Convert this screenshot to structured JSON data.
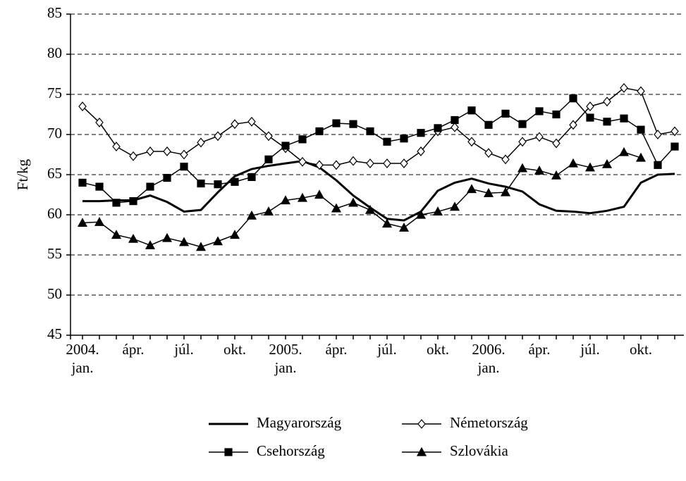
{
  "chart_data": {
    "type": "line",
    "ylabel": "Ft/kg",
    "categories": [
      [
        "2004.",
        "jan."
      ],
      null,
      null,
      "ápr.",
      null,
      null,
      "júl.",
      null,
      null,
      "okt.",
      null,
      null,
      [
        "2005.",
        "jan."
      ],
      null,
      null,
      "ápr.",
      null,
      null,
      "júl.",
      null,
      null,
      "okt.",
      null,
      null,
      [
        "2006.",
        "jan."
      ],
      null,
      null,
      "ápr.",
      null,
      null,
      "júl.",
      null,
      null,
      "okt.",
      null,
      null
    ],
    "series": [
      {
        "name": "Magyarország",
        "color": "#000000",
        "marker": "none",
        "values": [
          61.7,
          61.7,
          61.8,
          61.8,
          62.4,
          61.6,
          60.4,
          60.6,
          62.8,
          64.8,
          65.7,
          66.1,
          66.4,
          66.7,
          65.9,
          64.3,
          62.4,
          60.9,
          59.5,
          59.3,
          60.4,
          63.0,
          64.0,
          64.5,
          63.9,
          63.5,
          62.9,
          61.3,
          60.5,
          60.4,
          60.2,
          60.5,
          61.0,
          64.0,
          65.0,
          65.1
        ]
      },
      {
        "name": "Németország",
        "color": "#000000",
        "marker": "diamond",
        "values": [
          73.5,
          71.5,
          68.5,
          67.3,
          67.9,
          67.9,
          67.5,
          69.0,
          69.8,
          71.3,
          71.6,
          69.8,
          68.3,
          66.6,
          66.2,
          66.2,
          66.7,
          66.4,
          66.4,
          66.4,
          67.9,
          70.4,
          70.9,
          69.1,
          67.7,
          66.9,
          69.1,
          69.7,
          68.9,
          71.2,
          73.5,
          74.1,
          75.8,
          75.4,
          70.0,
          70.4
        ]
      },
      {
        "name": "Csehország",
        "color": "#000000",
        "marker": "square",
        "values": [
          64.0,
          63.5,
          61.5,
          61.7,
          63.5,
          64.6,
          66.0,
          63.9,
          63.8,
          64.1,
          64.7,
          66.9,
          68.6,
          69.4,
          70.4,
          71.4,
          71.3,
          70.4,
          69.1,
          69.5,
          70.2,
          70.8,
          71.8,
          73.0,
          71.2,
          72.6,
          71.3,
          72.9,
          72.5,
          74.5,
          72.1,
          71.6,
          72.0,
          70.6,
          66.2,
          68.5
        ]
      },
      {
        "name": "Szlovákia",
        "color": "#000000",
        "marker": "triangle",
        "values": [
          59.0,
          59.1,
          57.5,
          57.0,
          56.2,
          57.1,
          56.6,
          56.0,
          56.7,
          57.5,
          59.9,
          60.4,
          61.8,
          62.1,
          62.5,
          60.8,
          61.5,
          60.6,
          58.9,
          58.4,
          60.0,
          60.4,
          61.0,
          63.2,
          62.7,
          62.8,
          65.8,
          65.5,
          64.9,
          66.4,
          65.9,
          66.3,
          67.8,
          67.1,
          null,
          null
        ]
      }
    ],
    "ylim": [
      45,
      85
    ],
    "yticks": [
      45,
      50,
      55,
      60,
      65,
      70,
      75,
      80,
      85
    ],
    "grid": true,
    "legend": "bottom"
  }
}
